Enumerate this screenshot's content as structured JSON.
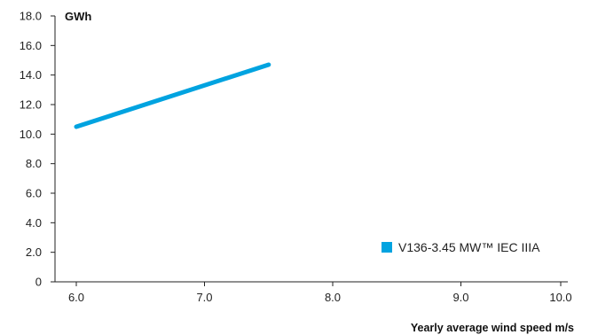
{
  "chart_data": {
    "type": "line",
    "title": "",
    "ylabel": "GWh",
    "xlabel": "Yearly average wind speed m/s",
    "xlim": [
      6.0,
      10.0
    ],
    "ylim": [
      0,
      18.0
    ],
    "x_ticks": [
      "6.0",
      "7.0",
      "8.0",
      "9.0",
      "10.0"
    ],
    "y_ticks": [
      "0",
      "2.0",
      "4.0",
      "6.0",
      "8.0",
      "10.0",
      "12.0",
      "14.0",
      "16.0",
      "18.0"
    ],
    "grid": false,
    "legend_position": "bottom-right",
    "series": [
      {
        "name": "V136-3.45 MW™ IEC IIIA",
        "color": "#00a3e0",
        "x": [
          6.0,
          7.5
        ],
        "y": [
          10.5,
          14.7
        ]
      }
    ]
  }
}
